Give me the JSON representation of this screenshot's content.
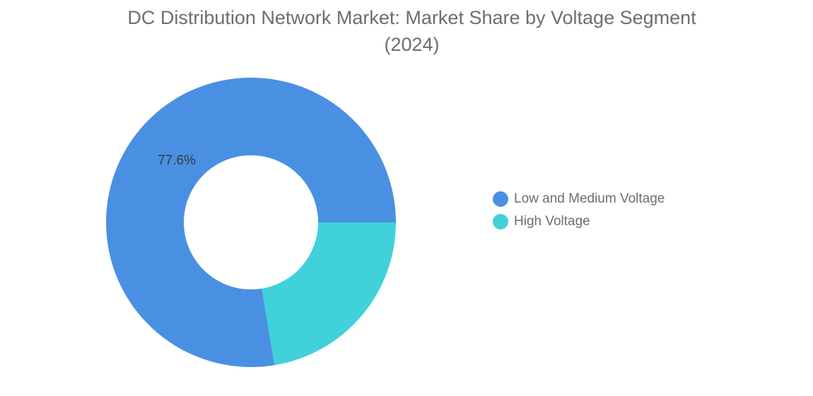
{
  "chart_data": {
    "type": "pie",
    "title_line1": "DC Distribution Network Market: Market Share by Voltage Segment",
    "title_line2": "(2024)",
    "slices": [
      {
        "label": "Low and Medium Voltage",
        "value": 77.6,
        "color": "#4a90e2",
        "data_label": "77.6%"
      },
      {
        "label": "High Voltage",
        "value": 22.4,
        "color": "#40d1da",
        "data_label": ""
      }
    ],
    "donut": true,
    "legend_position": "right"
  }
}
